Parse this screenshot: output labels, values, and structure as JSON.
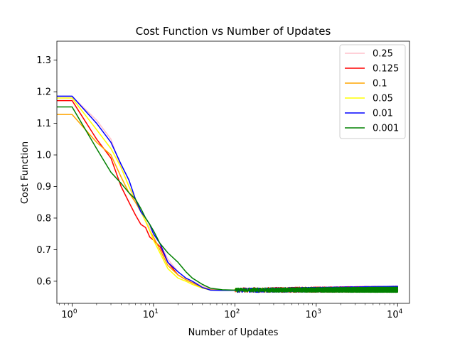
{
  "chart_data": {
    "type": "line",
    "title": "Cost Function vs Number of Updates",
    "xlabel": "Number of Updates",
    "ylabel": "Cost Function",
    "xscale": "log",
    "xlim": [
      0.65,
      14000
    ],
    "ylim": [
      0.53,
      1.36
    ],
    "grid": false,
    "legend_position": "top-right",
    "x_ticks": [
      {
        "value": 1,
        "label": "10",
        "exp": "0"
      },
      {
        "value": 10,
        "label": "10",
        "exp": "1"
      },
      {
        "value": 100,
        "label": "10",
        "exp": "2"
      },
      {
        "value": 1000,
        "label": "10",
        "exp": "3"
      },
      {
        "value": 10000,
        "label": "10",
        "exp": "4"
      }
    ],
    "y_ticks": [
      {
        "value": 0.6,
        "label": "0.6"
      },
      {
        "value": 0.7,
        "label": "0.7"
      },
      {
        "value": 0.8,
        "label": "0.8"
      },
      {
        "value": 0.9,
        "label": "0.9"
      },
      {
        "value": 1.0,
        "label": "1.0"
      },
      {
        "value": 1.1,
        "label": "1.1"
      },
      {
        "value": 1.2,
        "label": "1.2"
      },
      {
        "value": 1.3,
        "label": "1.3"
      }
    ],
    "series": [
      {
        "name": "0.25",
        "color": "#ffc0cb",
        "x": [
          0.65,
          1,
          2,
          3,
          4,
          5,
          6,
          7,
          8,
          9,
          10,
          12,
          15,
          20,
          25,
          30,
          40,
          50,
          70,
          100,
          10000
        ],
        "y": [
          1.185,
          1.185,
          1.11,
          1.05,
          0.96,
          0.9,
          0.85,
          0.82,
          0.79,
          0.77,
          0.75,
          0.72,
          0.67,
          0.63,
          0.61,
          0.6,
          0.585,
          0.575,
          0.572,
          0.572,
          0.572
        ],
        "noise": 0.007
      },
      {
        "name": "0.125",
        "color": "#ff0000",
        "x": [
          0.65,
          1,
          2,
          3,
          4,
          5,
          6,
          7,
          8,
          9,
          10,
          12,
          15,
          20,
          25,
          30,
          40,
          50,
          70,
          100,
          10000
        ],
        "y": [
          1.172,
          1.172,
          1.05,
          0.99,
          0.9,
          0.85,
          0.81,
          0.78,
          0.77,
          0.74,
          0.73,
          0.71,
          0.66,
          0.62,
          0.605,
          0.595,
          0.58,
          0.573,
          0.572,
          0.572,
          0.575
        ],
        "noise": 0.009
      },
      {
        "name": "0.1",
        "color": "#ffa500",
        "x": [
          0.65,
          1,
          2,
          3,
          4,
          5,
          6,
          7,
          8,
          9,
          10,
          12,
          15,
          20,
          25,
          30,
          40,
          50,
          70,
          100,
          10000
        ],
        "y": [
          1.128,
          1.128,
          1.04,
          1.0,
          0.93,
          0.88,
          0.85,
          0.82,
          0.79,
          0.76,
          0.74,
          0.7,
          0.65,
          0.62,
          0.605,
          0.595,
          0.58,
          0.573,
          0.572,
          0.572,
          0.574
        ],
        "noise": 0.007
      },
      {
        "name": "0.05",
        "color": "#ffff00",
        "x": [
          0.65,
          1,
          2,
          3,
          4,
          5,
          6,
          7,
          8,
          9,
          10,
          12,
          15,
          20,
          25,
          30,
          40,
          50,
          70,
          100,
          10000
        ],
        "y": [
          1.18,
          1.18,
          1.08,
          1.02,
          0.96,
          0.9,
          0.86,
          0.82,
          0.79,
          0.76,
          0.73,
          0.69,
          0.64,
          0.61,
          0.6,
          0.59,
          0.578,
          0.572,
          0.571,
          0.572,
          0.572
        ],
        "noise": 0.006
      },
      {
        "name": "0.01",
        "color": "#0000ff",
        "x": [
          0.65,
          1,
          2,
          3,
          4,
          5,
          6,
          7,
          8,
          9,
          10,
          12,
          15,
          20,
          25,
          30,
          40,
          50,
          70,
          100,
          10000
        ],
        "y": [
          1.186,
          1.186,
          1.1,
          1.04,
          0.97,
          0.92,
          0.86,
          0.82,
          0.8,
          0.78,
          0.75,
          0.72,
          0.66,
          0.63,
          0.61,
          0.6,
          0.58,
          0.572,
          0.571,
          0.571,
          0.576
        ],
        "noise": 0.008
      },
      {
        "name": "0.001",
        "color": "#008000",
        "x": [
          0.65,
          1,
          2,
          3,
          4,
          5,
          6,
          7,
          8,
          9,
          10,
          12,
          15,
          20,
          25,
          30,
          40,
          50,
          70,
          100,
          10000
        ],
        "y": [
          1.152,
          1.152,
          1.02,
          0.945,
          0.91,
          0.88,
          0.86,
          0.83,
          0.8,
          0.78,
          0.76,
          0.72,
          0.69,
          0.66,
          0.63,
          0.61,
          0.59,
          0.578,
          0.573,
          0.572,
          0.573
        ],
        "noise": 0.008
      }
    ]
  }
}
